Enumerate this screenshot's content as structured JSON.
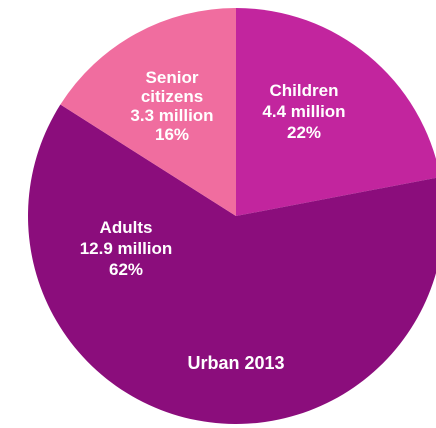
{
  "chart_data": {
    "type": "pie",
    "title": "Urban 2013",
    "slices": [
      {
        "name": "Children",
        "value_text": "4.4 million",
        "percent_text": "22%",
        "value": 4.4,
        "percent": 22,
        "color": "#c2259e",
        "label_lines": [
          "Children",
          "4.4 million",
          "22%"
        ]
      },
      {
        "name": "Adults",
        "value_text": "12.9 million",
        "percent_text": "62%",
        "value": 12.9,
        "percent": 62,
        "color": "#8b0d7c",
        "label_lines": [
          "Adults",
          "12.9 million",
          "62%"
        ]
      },
      {
        "name": "Senior citizens",
        "value_text": "3.3 million",
        "percent_text": "16%",
        "value": 3.3,
        "percent": 16,
        "color": "#f06d9f",
        "label_lines": [
          "Senior",
          "citizens",
          "3.3 million",
          "16%"
        ]
      }
    ]
  }
}
